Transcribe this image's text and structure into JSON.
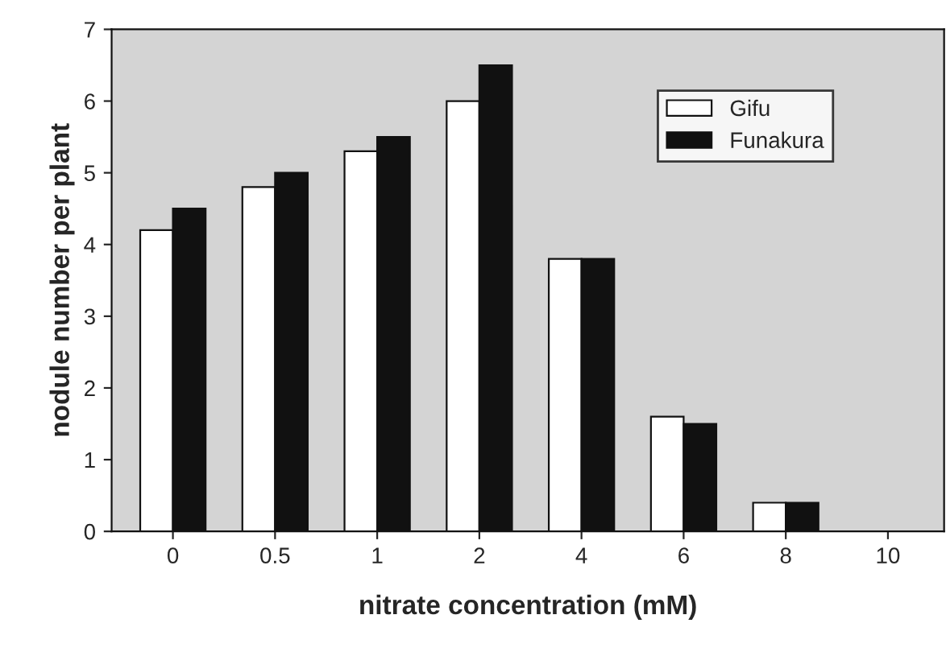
{
  "chart_data": {
    "type": "bar",
    "xlabel": "nitrate concentration (mM)",
    "ylabel": "nodule number per plant",
    "categories": [
      "0",
      "0.5",
      "1",
      "2",
      "4",
      "6",
      "8",
      "10"
    ],
    "series": [
      {
        "name": "Gifu",
        "color": "#ffffff",
        "values": [
          4.2,
          4.8,
          5.3,
          6.0,
          3.8,
          1.6,
          0.4,
          null
        ]
      },
      {
        "name": "Funakura",
        "color": "#111111",
        "values": [
          4.5,
          5.0,
          5.5,
          6.5,
          3.8,
          1.5,
          0.4,
          null
        ]
      }
    ],
    "ylim": [
      0,
      7
    ],
    "yticks": [
      0,
      1,
      2,
      3,
      4,
      5,
      6,
      7
    ],
    "grid": false,
    "legend": "top right"
  }
}
